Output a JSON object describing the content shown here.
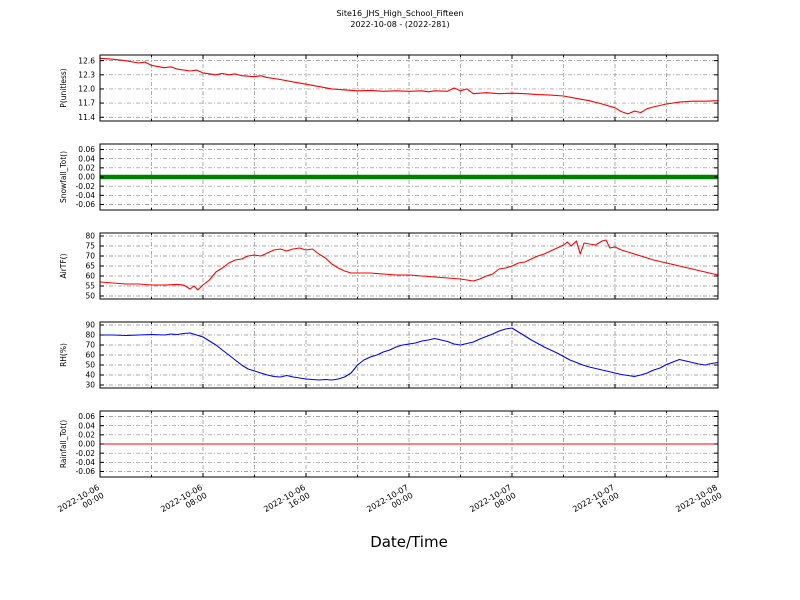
{
  "title": {
    "line1": "Site16_JHS_High_School_Fifteen",
    "line2": "2022-10-08 - (2022-281)"
  },
  "xlabel": "Date/Time",
  "x_axis": {
    "unit": "hours since 2022-10-06 00:00",
    "range": [
      0,
      48
    ],
    "ticks": [
      {
        "pos": 0,
        "line1": "2022-10-06",
        "line2": "00:00"
      },
      {
        "pos": 8,
        "line1": "2022-10-06",
        "line2": "08:00"
      },
      {
        "pos": 16,
        "line1": "2022-10-06",
        "line2": "16:00"
      },
      {
        "pos": 24,
        "line1": "2022-10-07",
        "line2": "00:00"
      },
      {
        "pos": 32,
        "line1": "2022-10-07",
        "line2": "08:00"
      },
      {
        "pos": 40,
        "line1": "2022-10-07",
        "line2": "16:00"
      },
      {
        "pos": 48,
        "line1": "2022-10-08",
        "line2": "00:00"
      }
    ]
  },
  "grid": {
    "on": true,
    "style": "dash-dot",
    "color": "#8c8c8c"
  },
  "chart_data": [
    {
      "type": "line",
      "ylabel": "P(unitless)",
      "color": "#ff0000",
      "linewidth": 1.1,
      "ylim": [
        11.32,
        12.72
      ],
      "yticks": [
        11.4,
        11.7,
        12.0,
        12.3,
        12.6
      ],
      "ytick_decimals": 1,
      "x": [
        0,
        1,
        2,
        3,
        3.5,
        4,
        5,
        5.5,
        6,
        7,
        7.5,
        8,
        9,
        9.5,
        10,
        10.5,
        11,
        12,
        12.5,
        13,
        14,
        15,
        16,
        17,
        18,
        19,
        20,
        21,
        22,
        23,
        24,
        25,
        25.5,
        26,
        27,
        27.5,
        28,
        28.5,
        29,
        30,
        31,
        32,
        33,
        34,
        35,
        36,
        37,
        38,
        39,
        40,
        40.5,
        41,
        41.5,
        42,
        42.5,
        43,
        44,
        45,
        46,
        47,
        48
      ],
      "y": [
        12.65,
        12.63,
        12.6,
        12.55,
        12.57,
        12.5,
        12.45,
        12.47,
        12.42,
        12.38,
        12.4,
        12.34,
        12.3,
        12.33,
        12.3,
        12.32,
        12.28,
        12.26,
        12.28,
        12.24,
        12.2,
        12.15,
        12.1,
        12.05,
        12.0,
        11.98,
        11.96,
        11.97,
        11.95,
        11.96,
        11.95,
        11.96,
        11.94,
        11.96,
        11.95,
        12.02,
        11.96,
        12.0,
        11.9,
        11.92,
        11.9,
        11.91,
        11.9,
        11.88,
        11.87,
        11.85,
        11.8,
        11.75,
        11.68,
        11.6,
        11.52,
        11.47,
        11.53,
        11.5,
        11.58,
        11.62,
        11.68,
        11.72,
        11.74,
        11.74,
        11.75
      ]
    },
    {
      "type": "line",
      "ylabel": "Snowfall_Tot()",
      "color": "#008000",
      "linewidth": 4.5,
      "ylim": [
        -0.072,
        0.072
      ],
      "yticks": [
        -0.06,
        -0.04,
        -0.02,
        0.0,
        0.02,
        0.04,
        0.06
      ],
      "ytick_decimals": 2,
      "x": [
        0,
        48
      ],
      "y": [
        0,
        0
      ]
    },
    {
      "type": "line",
      "ylabel": "AirTF()",
      "color": "#ff0000",
      "linewidth": 1.1,
      "ylim": [
        48.5,
        81.5
      ],
      "yticks": [
        50,
        55,
        60,
        65,
        70,
        75,
        80
      ],
      "ytick_decimals": 0,
      "x": [
        0,
        1,
        2,
        3,
        4,
        5,
        6,
        6.5,
        7,
        7.3,
        7.6,
        8,
        8.5,
        9,
        9.5,
        10,
        10.5,
        11,
        11.5,
        12,
        12.5,
        13,
        13.5,
        14,
        14.5,
        15,
        15.5,
        16,
        16.5,
        17,
        17.5,
        18,
        18.5,
        19,
        19.5,
        20,
        21,
        22,
        23,
        24,
        25,
        26,
        27,
        28,
        28.5,
        29,
        29.5,
        30,
        30.5,
        31,
        31.5,
        32,
        32.5,
        33,
        33.5,
        34,
        34.5,
        35,
        35.5,
        36,
        36.3,
        36.6,
        37,
        37.3,
        37.6,
        38,
        38.5,
        39,
        39.3,
        39.6,
        40,
        40.5,
        41,
        42,
        43,
        44,
        45,
        46,
        47,
        48
      ],
      "y": [
        57,
        56.5,
        56,
        56,
        55.5,
        55.5,
        55.8,
        55.5,
        53.5,
        55,
        53,
        55.5,
        58,
        62,
        64,
        66.5,
        68,
        68.5,
        70,
        70.5,
        70,
        71.5,
        73,
        73.5,
        72.5,
        73.5,
        74,
        73,
        73.5,
        71,
        69,
        66,
        64,
        62.5,
        61.5,
        61.5,
        61.5,
        61,
        60.5,
        60.5,
        60,
        59.5,
        59,
        58.5,
        58,
        57.5,
        58.5,
        60,
        61,
        63.5,
        64,
        65,
        66.5,
        67,
        68.5,
        70,
        71,
        72.5,
        74,
        75.5,
        77,
        75,
        77.5,
        71,
        76.5,
        76,
        75.5,
        77.5,
        78,
        74,
        74.5,
        73,
        72,
        70,
        68,
        66.5,
        65,
        63.5,
        62,
        60.5
      ]
    },
    {
      "type": "line",
      "ylabel": "RH(%)",
      "color": "#0000ff",
      "linewidth": 1.1,
      "ylim": [
        27,
        93
      ],
      "yticks": [
        30,
        40,
        50,
        60,
        70,
        80,
        90
      ],
      "ytick_decimals": 0,
      "x": [
        0,
        1,
        2,
        3,
        4,
        5,
        5.5,
        6,
        6.5,
        7,
        7.5,
        8,
        8.5,
        9,
        9.5,
        10,
        10.5,
        11,
        11.5,
        12,
        12.5,
        13,
        13.5,
        14,
        14.5,
        15,
        15.5,
        16,
        16.5,
        17,
        17.5,
        18,
        18.5,
        19,
        19.5,
        20,
        20.5,
        21,
        21.5,
        22,
        22.5,
        23,
        23.5,
        24,
        24.5,
        25,
        25.5,
        26,
        26.5,
        27,
        27.5,
        28,
        28.5,
        29,
        29.5,
        30,
        30.5,
        31,
        31.5,
        32,
        32.5,
        33,
        33.5,
        34,
        34.5,
        35,
        35.5,
        36,
        36.5,
        37,
        37.5,
        38,
        38.5,
        39,
        39.5,
        40,
        40.5,
        41,
        41.5,
        42,
        42.5,
        43,
        43.5,
        44,
        44.5,
        45,
        45.5,
        46,
        46.5,
        47,
        47.5,
        48
      ],
      "y": [
        80,
        80,
        79.5,
        80,
        80.5,
        80,
        81,
        80.5,
        81.5,
        82,
        80,
        78,
        74,
        70,
        65,
        60,
        55,
        50,
        46,
        44,
        42,
        40,
        38.5,
        38,
        39.5,
        38,
        37,
        36,
        35.5,
        35,
        35.5,
        35,
        36,
        38,
        42,
        50,
        55,
        58,
        60,
        63,
        65,
        68,
        70,
        71,
        72,
        74,
        75,
        76.5,
        75,
        73.5,
        71,
        70,
        71.5,
        73,
        76,
        78.5,
        81,
        84,
        86,
        87,
        83,
        79,
        75,
        71.5,
        68,
        65,
        62,
        58.5,
        55,
        52.5,
        50,
        48,
        46.5,
        45,
        43.5,
        42,
        40.5,
        39.5,
        38.5,
        40,
        42,
        45,
        47,
        50.5,
        53,
        55.5,
        54,
        52.5,
        51,
        50,
        51.5,
        52.5
      ]
    },
    {
      "type": "line",
      "ylabel": "Rainfall_Tot()",
      "color": "#ff0000",
      "linewidth": 1,
      "ylim": [
        -0.072,
        0.072
      ],
      "yticks": [
        -0.06,
        -0.04,
        -0.02,
        0.0,
        0.02,
        0.04,
        0.06
      ],
      "ytick_decimals": 2,
      "x": [
        0,
        48
      ],
      "y": [
        0,
        0
      ]
    }
  ]
}
